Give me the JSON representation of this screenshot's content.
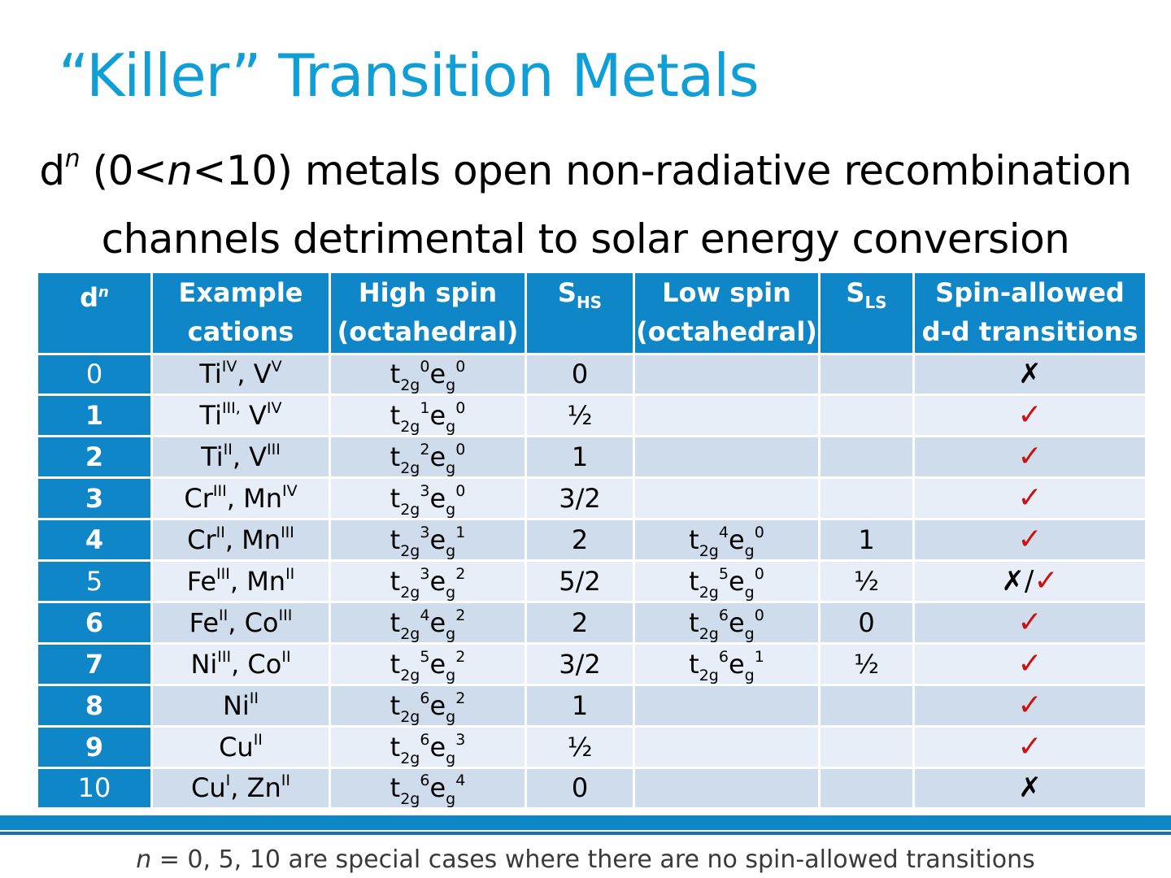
{
  "title": "“Killer” Transition Metals",
  "subtitle": {
    "d": "d",
    "n_sup": "n",
    "open_paren": " (0<",
    "n": "n",
    "rest1": "<10) metals open non-radiative recombination",
    "line2": "channels detrimental to solar energy conversion"
  },
  "table": {
    "headers": {
      "dn_main": "d",
      "dn_sup": "n",
      "example_l1": "Example",
      "example_l2": "cations",
      "hs_l1": "High spin",
      "hs_l2": "(octahedral)",
      "shs_main": "S",
      "shs_sub": "HS",
      "ls_l1": "Low spin",
      "ls_l2": "(octahedral)",
      "sls_main": "S",
      "sls_sub": "LS",
      "allowed_l1": "Spin-allowed",
      "allowed_l2": "d-d transitions"
    },
    "rows": [
      {
        "dn": "0",
        "c1": "Ti",
        "c1s": "IV",
        "c2": ", V",
        "c2s": "V",
        "hs_t": "0",
        "hs_e": "0",
        "shs": "0",
        "ls_t": "",
        "ls_e": "",
        "sls": "",
        "allowed": "cross"
      },
      {
        "dn": "1",
        "c1": "Ti",
        "c1s": "III,",
        "c2": " V",
        "c2s": "IV",
        "hs_t": "1",
        "hs_e": "0",
        "shs": "½",
        "ls_t": "",
        "ls_e": "",
        "sls": "",
        "allowed": "check"
      },
      {
        "dn": "2",
        "c1": "Ti",
        "c1s": "II",
        "c2": ", V",
        "c2s": "III",
        "hs_t": "2",
        "hs_e": "0",
        "shs": "1",
        "ls_t": "",
        "ls_e": "",
        "sls": "",
        "allowed": "check"
      },
      {
        "dn": "3",
        "c1": "Cr",
        "c1s": "III",
        "c2": ", Mn",
        "c2s": "IV",
        "hs_t": "3",
        "hs_e": "0",
        "shs": "3/2",
        "ls_t": "",
        "ls_e": "",
        "sls": "",
        "allowed": "check"
      },
      {
        "dn": "4",
        "c1": "Cr",
        "c1s": "II",
        "c2": ", Mn",
        "c2s": "III",
        "hs_t": "3",
        "hs_e": "1",
        "shs": "2",
        "ls_t": "4",
        "ls_e": "0",
        "sls": "1",
        "allowed": "check"
      },
      {
        "dn": "5",
        "c1": "Fe",
        "c1s": "III",
        "c2": ", Mn",
        "c2s": "II",
        "hs_t": "3",
        "hs_e": "2",
        "shs": "5/2",
        "ls_t": "5",
        "ls_e": "0",
        "sls": "½",
        "allowed": "both"
      },
      {
        "dn": "6",
        "c1": "Fe",
        "c1s": "II",
        "c2": ", Co",
        "c2s": "III",
        "hs_t": "4",
        "hs_e": "2",
        "shs": "2",
        "ls_t": "6",
        "ls_e": "0",
        "sls": "0",
        "allowed": "check"
      },
      {
        "dn": "7",
        "c1": "Ni",
        "c1s": "III",
        "c2": ", Co",
        "c2s": "II",
        "hs_t": "5",
        "hs_e": "2",
        "shs": "3/2",
        "ls_t": "6",
        "ls_e": "1",
        "sls": "½",
        "allowed": "check"
      },
      {
        "dn": "8",
        "c1": "Ni",
        "c1s": "II",
        "c2": "",
        "c2s": "",
        "hs_t": "6",
        "hs_e": "2",
        "shs": "1",
        "ls_t": "",
        "ls_e": "",
        "sls": "",
        "allowed": "check"
      },
      {
        "dn": "9",
        "c1": "Cu",
        "c1s": "II",
        "c2": "",
        "c2s": "",
        "hs_t": "6",
        "hs_e": "3",
        "shs": "½",
        "ls_t": "",
        "ls_e": "",
        "sls": "",
        "allowed": "check"
      },
      {
        "dn": "10",
        "c1": "Cu",
        "c1s": "I",
        "c2": ", Zn",
        "c2s": "II",
        "hs_t": "6",
        "hs_e": "4",
        "shs": "0",
        "ls_t": "",
        "ls_e": "",
        "sls": "",
        "allowed": "cross"
      }
    ],
    "symbols": {
      "t": "t",
      "t_sub": "2g",
      "e": "e",
      "e_sub": "g",
      "cross": "✗",
      "check": "✓",
      "slash": "/"
    }
  },
  "footer": {
    "n": "n",
    "text": " = 0, 5, 10 are special cases where there are no spin-allowed transitions"
  },
  "colors": {
    "title": "#0f9ed5",
    "header_bg": "#0e86c8",
    "row_odd": "#cfdcec",
    "row_even": "#e8eef7",
    "check": "#cc1111"
  }
}
